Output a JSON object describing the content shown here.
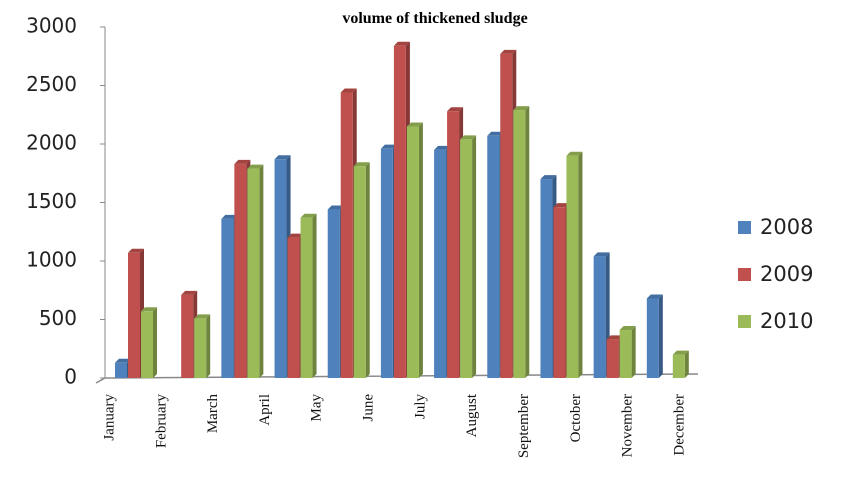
{
  "chart_data": {
    "type": "bar",
    "title": "volume of thickened sludge",
    "categories": [
      "January",
      "February",
      "March",
      "April",
      "May",
      "June",
      "July",
      "August",
      "September",
      "October",
      "November",
      "December"
    ],
    "series": [
      {
        "name": "2008",
        "color": "#4f81bd",
        "values": [
          130,
          null,
          1360,
          1870,
          1440,
          1960,
          1950,
          2070,
          1700,
          1040,
          680,
          null
        ]
      },
      {
        "name": "2009",
        "color": "#c0504d",
        "values": [
          1070,
          710,
          1830,
          1200,
          2440,
          2840,
          2280,
          2770,
          1460,
          330,
          null,
          null
        ]
      },
      {
        "name": "2010",
        "color": "#9bbb59",
        "values": [
          570,
          510,
          1790,
          1370,
          1810,
          2150,
          2040,
          2290,
          1900,
          410,
          200,
          null
        ]
      }
    ],
    "ylim": [
      0,
      3000
    ],
    "yticks": [
      0,
      500,
      1000,
      1500,
      2000,
      2500,
      3000
    ],
    "grid": false,
    "legend": "right"
  }
}
